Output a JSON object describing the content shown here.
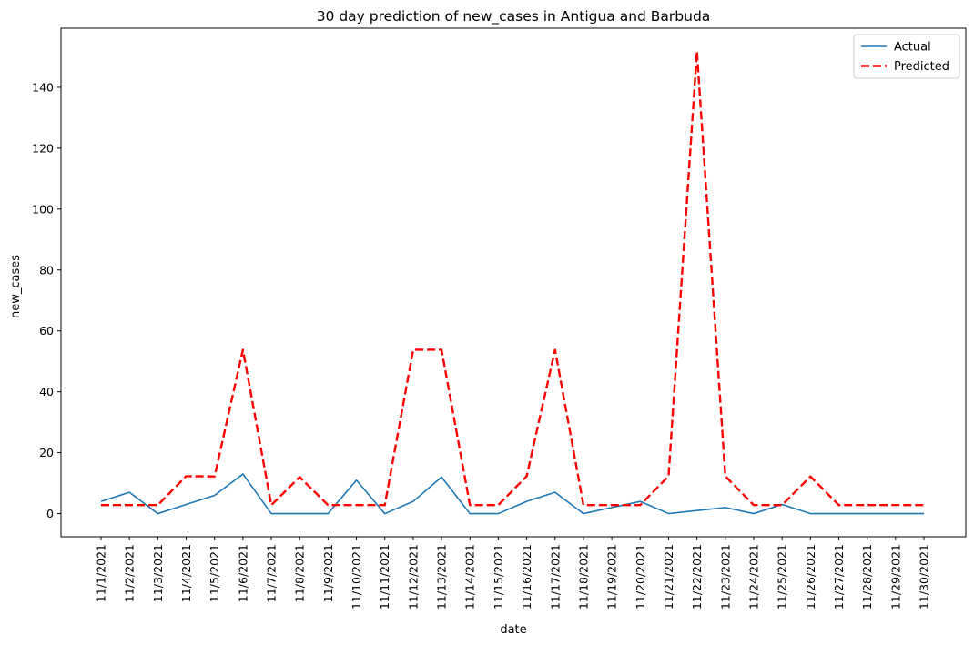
{
  "chart_data": {
    "type": "line",
    "title": "30 day prediction of new_cases in Antigua and Barbuda",
    "xlabel": "date",
    "ylabel": "new_cases",
    "categories": [
      "11/1/2021",
      "11/2/2021",
      "11/3/2021",
      "11/4/2021",
      "11/5/2021",
      "11/6/2021",
      "11/7/2021",
      "11/8/2021",
      "11/9/2021",
      "11/10/2021",
      "11/11/2021",
      "11/12/2021",
      "11/13/2021",
      "11/14/2021",
      "11/15/2021",
      "11/16/2021",
      "11/17/2021",
      "11/18/2021",
      "11/19/2021",
      "11/20/2021",
      "11/21/2021",
      "11/22/2021",
      "11/23/2021",
      "11/24/2021",
      "11/25/2021",
      "11/26/2021",
      "11/27/2021",
      "11/28/2021",
      "11/29/2021",
      "11/30/2021"
    ],
    "yticks": [
      0,
      20,
      40,
      60,
      80,
      100,
      120,
      140
    ],
    "ylim": [
      -7.6,
      159.4
    ],
    "grid": false,
    "legend": "top-right",
    "series": [
      {
        "name": "Actual",
        "color": "#1f77b4",
        "style": "solid",
        "values": [
          4,
          7,
          0,
          3,
          6,
          13,
          0,
          0,
          0,
          11,
          0,
          4,
          12,
          0,
          0,
          4,
          7,
          0,
          2,
          4,
          0,
          1,
          2,
          0,
          3,
          0,
          0,
          0,
          0,
          0
        ]
      },
      {
        "name": "Predicted",
        "color": "#ff0000",
        "style": "dashed",
        "values": [
          2.8,
          2.8,
          2.8,
          12.3,
          12.2,
          53.8,
          2.8,
          12.0,
          2.8,
          2.8,
          2.8,
          53.8,
          53.8,
          2.8,
          2.8,
          12.3,
          53.8,
          2.8,
          2.8,
          2.8,
          12.3,
          151.8,
          12.3,
          2.8,
          2.8,
          12.2,
          2.8,
          2.8,
          2.8,
          2.8
        ]
      }
    ]
  }
}
